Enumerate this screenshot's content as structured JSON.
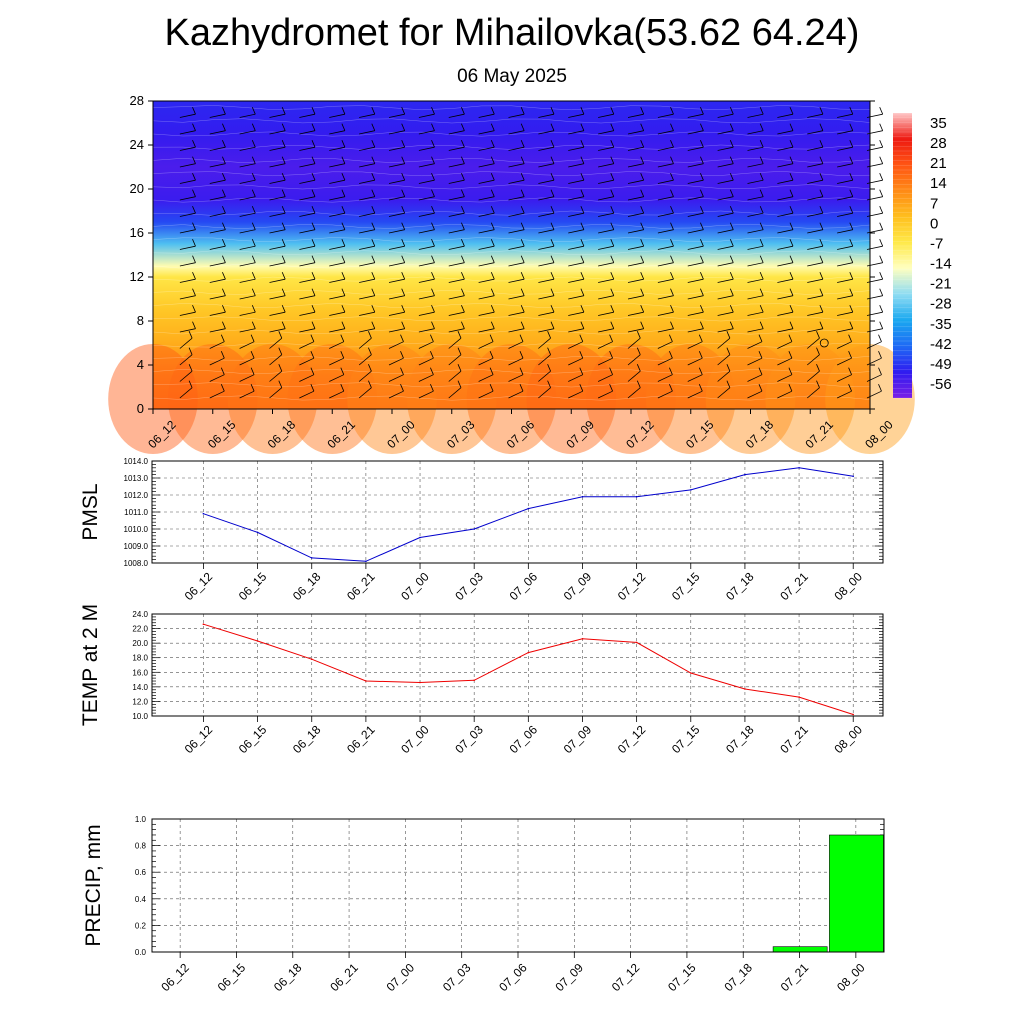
{
  "title": "Kazhydromet for Mihailovka(53.62 64.24)",
  "subtitle": "06 May 2025",
  "chart_data": [
    {
      "type": "heatmap",
      "name": "temperature-cross-section",
      "x": [
        "06_12",
        "06_15",
        "06_18",
        "06_21",
        "07_00",
        "07_03",
        "07_06",
        "07_09",
        "07_12",
        "07_15",
        "07_18",
        "07_21",
        "08_00"
      ],
      "y_ticks": [
        0,
        4,
        8,
        12,
        16,
        20,
        24,
        28
      ],
      "ylim": [
        0,
        28
      ],
      "colorbar_labels": [
        "35",
        "28",
        "21",
        "14",
        "7",
        "0",
        "-7",
        "-14",
        "-21",
        "-28",
        "-35",
        "-42",
        "-49",
        "-56"
      ],
      "colorbar_range": [
        -63,
        42
      ],
      "profile": [
        {
          "level": 0,
          "value": 18
        },
        {
          "level": 3,
          "value": 14
        },
        {
          "level": 6,
          "value": 7
        },
        {
          "level": 9,
          "value": 2
        },
        {
          "level": 12,
          "value": -5
        },
        {
          "level": 13,
          "value": -14
        },
        {
          "level": 15,
          "value": -30
        },
        {
          "level": 17,
          "value": -48
        },
        {
          "level": 19,
          "value": -55
        },
        {
          "level": 22,
          "value": -57
        },
        {
          "level": 25,
          "value": -54
        },
        {
          "level": 28,
          "value": -52
        }
      ],
      "surface_values": [
        22,
        20,
        17,
        18,
        14,
        15,
        18,
        20,
        19,
        16,
        13,
        12,
        10
      ],
      "colors": {
        "palette": [
          "#7a1fe6",
          "#2f1cf0",
          "#1e6af5",
          "#1aa8f0",
          "#8fdcf2",
          "#ffffc0",
          "#ffe94a",
          "#ffbf1e",
          "#ff8a16",
          "#ff5514",
          "#ee1a12",
          "#ffc8c8"
        ]
      },
      "wind_barbs": "black"
    },
    {
      "type": "line",
      "name": "PMSL",
      "ylabel": "PMSL",
      "x": [
        "06_12",
        "06_15",
        "06_18",
        "06_21",
        "07_00",
        "07_03",
        "07_06",
        "07_09",
        "07_12",
        "07_15",
        "07_18",
        "07_21",
        "08_00"
      ],
      "values": [
        1010.9,
        1009.8,
        1008.3,
        1008.1,
        1009.5,
        1010.0,
        1011.2,
        1011.9,
        1011.9,
        1012.3,
        1013.2,
        1013.6,
        1013.1
      ],
      "y_ticks": [
        "1008.0",
        "1009.0",
        "1010.0",
        "1011.0",
        "1012.0",
        "1013.0",
        "1014.0"
      ],
      "ylim": [
        1008.0,
        1014.0
      ],
      "color": "#0000cc",
      "grid": true
    },
    {
      "type": "line",
      "name": "TEMP at 2 M",
      "ylabel": "TEMP at 2 M",
      "x": [
        "06_12",
        "06_15",
        "06_18",
        "06_21",
        "07_00",
        "07_03",
        "07_06",
        "07_09",
        "07_12",
        "07_15",
        "07_18",
        "07_21",
        "08_00"
      ],
      "values": [
        22.6,
        20.3,
        17.8,
        14.8,
        14.6,
        14.9,
        18.7,
        20.6,
        20.1,
        15.9,
        13.7,
        12.6,
        10.2
      ],
      "y_ticks": [
        "10.0",
        "12.0",
        "14.0",
        "16.0",
        "18.0",
        "20.0",
        "22.0",
        "24.0"
      ],
      "ylim": [
        10.0,
        24.0
      ],
      "color": "#ee0000",
      "grid": true
    },
    {
      "type": "bar",
      "name": "PRECIP",
      "ylabel": "PRECIP, mm",
      "categories": [
        "06_12",
        "06_15",
        "06_18",
        "06_21",
        "07_00",
        "07_03",
        "07_06",
        "07_09",
        "07_12",
        "07_15",
        "07_18",
        "07_21",
        "08_00"
      ],
      "values": [
        0,
        0,
        0,
        0,
        0,
        0,
        0,
        0,
        0,
        0,
        0,
        0.04,
        0.88
      ],
      "y_ticks": [
        "0.0",
        "0.2",
        "0.4",
        "0.6",
        "0.8",
        "1.0"
      ],
      "ylim": [
        0,
        1.0
      ],
      "color": "#00ff00",
      "grid": true
    }
  ]
}
